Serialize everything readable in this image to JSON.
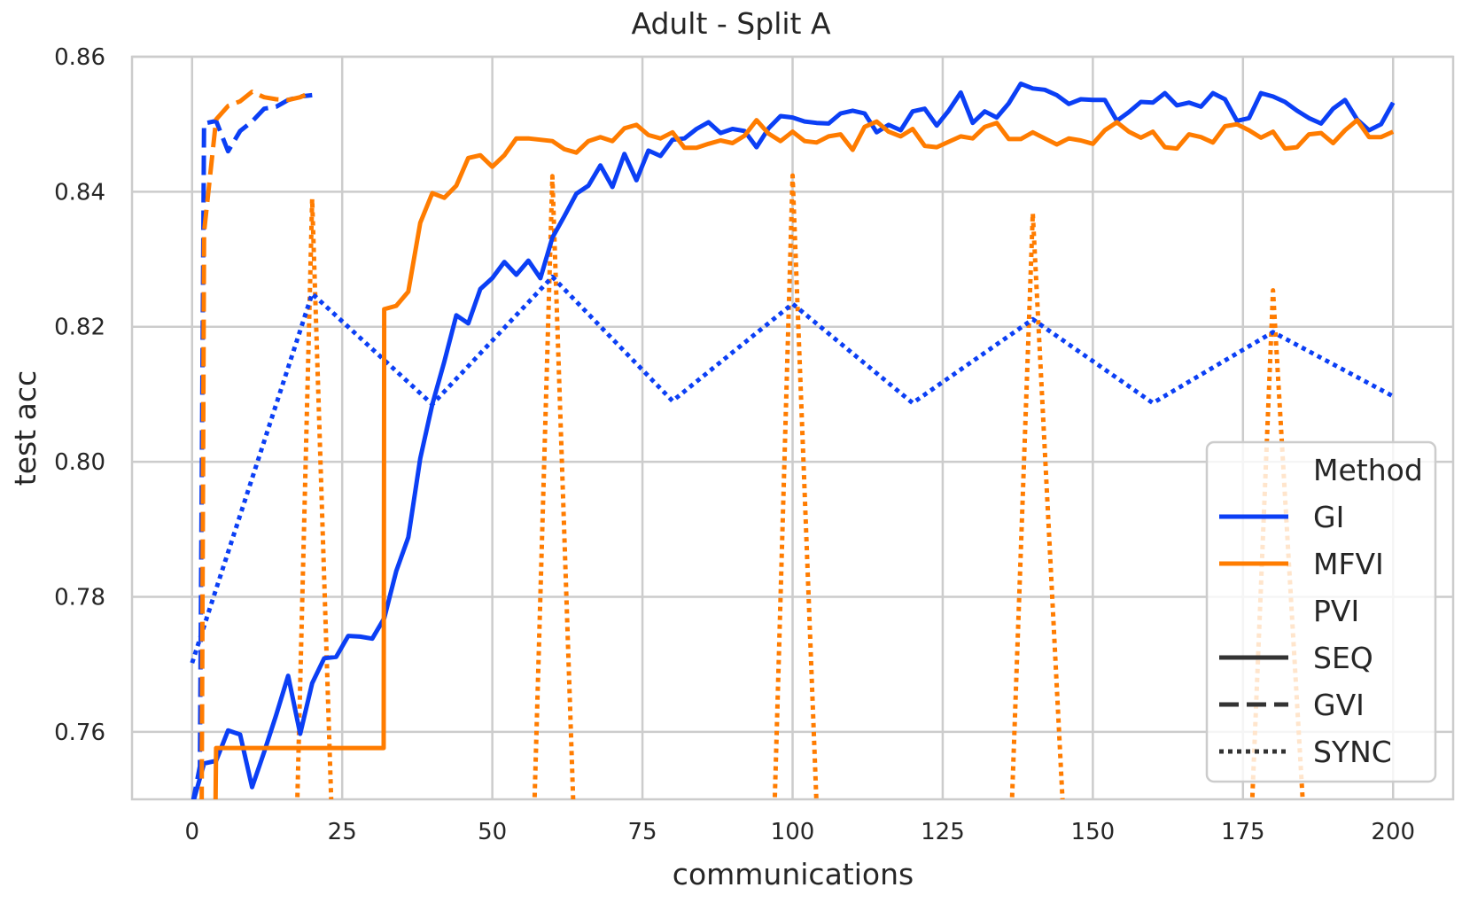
{
  "chart_data": {
    "type": "line",
    "title": "Adult - Split A",
    "xlabel": "communications",
    "ylabel": "test acc",
    "xlim": [
      -10,
      210
    ],
    "ylim": [
      0.75,
      0.86
    ],
    "xticks": [
      0,
      25,
      50,
      75,
      100,
      125,
      150,
      175,
      200
    ],
    "yticks": [
      0.76,
      0.78,
      0.8,
      0.82,
      0.84,
      0.86
    ],
    "xtick_labels": [
      "0",
      "25",
      "50",
      "75",
      "100",
      "125",
      "150",
      "175",
      "200"
    ],
    "ytick_labels": [
      "0.76",
      "0.78",
      "0.80",
      "0.82",
      "0.84",
      "0.86"
    ],
    "grid": true,
    "legend": {
      "placement": "lower-right",
      "title": "Method",
      "color_entries": [
        {
          "label": "GI",
          "color": "#0b3ff5"
        },
        {
          "label": "MFVI",
          "color": "#ff7c00"
        }
      ],
      "style_title": "PVI",
      "style_entries": [
        {
          "label": "SEQ",
          "dash": "solid"
        },
        {
          "label": "GVI",
          "dash": "dashed"
        },
        {
          "label": "SYNC",
          "dash": "dotted"
        }
      ]
    },
    "series": [
      {
        "method": "GI",
        "pvi": "SEQ",
        "color": "#0b3ff5",
        "dash": "solid",
        "x": [
          0,
          2,
          4,
          6,
          8,
          10,
          12,
          14,
          16,
          18,
          20,
          22,
          24,
          26,
          28,
          30,
          32,
          34,
          36,
          38,
          40,
          42,
          44,
          46,
          48,
          50,
          52,
          54,
          56,
          58,
          60,
          62,
          64,
          66,
          68,
          70,
          72,
          74,
          76,
          78,
          80,
          82,
          84,
          86,
          88,
          90,
          92,
          94,
          96,
          98,
          100,
          102,
          104,
          106,
          108,
          110,
          112,
          114,
          116,
          118,
          120,
          122,
          124,
          126,
          128,
          130,
          132,
          134,
          136,
          138,
          140,
          142,
          144,
          146,
          148,
          150,
          152,
          154,
          156,
          158,
          160,
          162,
          164,
          166,
          168,
          170,
          172,
          174,
          176,
          178,
          180,
          182,
          184,
          186,
          188,
          190,
          192,
          194,
          196,
          198,
          200
        ],
        "y": [
          0.749,
          0.7553,
          0.7557,
          0.7602,
          0.7596,
          0.7518,
          0.757,
          0.7625,
          0.7683,
          0.7597,
          0.7672,
          0.7709,
          0.7711,
          0.7742,
          0.7741,
          0.7738,
          0.7768,
          0.7838,
          0.7888,
          0.8005,
          0.8085,
          0.8148,
          0.8217,
          0.8205,
          0.8256,
          0.8272,
          0.8296,
          0.8277,
          0.8298,
          0.8272,
          0.8332,
          0.8364,
          0.8397,
          0.8409,
          0.8439,
          0.8407,
          0.8456,
          0.8417,
          0.8461,
          0.8453,
          0.8477,
          0.8479,
          0.8493,
          0.8503,
          0.8487,
          0.8493,
          0.849,
          0.8466,
          0.8494,
          0.8512,
          0.851,
          0.8504,
          0.8502,
          0.8501,
          0.8516,
          0.852,
          0.8516,
          0.8488,
          0.8499,
          0.8491,
          0.8519,
          0.8523,
          0.8498,
          0.852,
          0.8547,
          0.8502,
          0.8519,
          0.851,
          0.8531,
          0.856,
          0.8553,
          0.8551,
          0.8543,
          0.853,
          0.8537,
          0.8536,
          0.8536,
          0.8505,
          0.8518,
          0.8533,
          0.8532,
          0.8546,
          0.8528,
          0.8532,
          0.8526,
          0.8546,
          0.8537,
          0.8505,
          0.8509,
          0.8546,
          0.8541,
          0.8533,
          0.852,
          0.8509,
          0.8501,
          0.8523,
          0.8536,
          0.8507,
          0.8491,
          0.85,
          0.8532
        ]
      },
      {
        "method": "MFVI",
        "pvi": "SEQ",
        "color": "#ff7c00",
        "dash": "solid",
        "x": [
          3.9,
          4,
          30,
          31.9,
          32,
          34,
          36,
          38,
          40,
          42,
          44,
          46,
          48,
          50,
          52,
          54,
          56,
          58,
          60,
          62,
          64,
          66,
          68,
          70,
          72,
          74,
          76,
          78,
          80,
          82,
          84,
          86,
          88,
          90,
          92,
          94,
          96,
          98,
          100,
          102,
          104,
          106,
          108,
          110,
          112,
          114,
          116,
          118,
          120,
          122,
          124,
          126,
          128,
          130,
          132,
          134,
          136,
          138,
          140,
          142,
          144,
          146,
          148,
          150,
          152,
          154,
          156,
          158,
          160,
          162,
          164,
          166,
          168,
          170,
          172,
          174,
          176,
          178,
          180,
          182,
          184,
          186,
          188,
          190,
          192,
          194,
          196,
          198,
          200
        ],
        "y": [
          0.749,
          0.7576,
          0.7576,
          0.7576,
          0.8226,
          0.8231,
          0.8252,
          0.8354,
          0.8398,
          0.8391,
          0.8409,
          0.845,
          0.8454,
          0.8437,
          0.8454,
          0.8479,
          0.8479,
          0.8477,
          0.8475,
          0.8463,
          0.8458,
          0.8475,
          0.8481,
          0.8475,
          0.8494,
          0.8499,
          0.8484,
          0.8479,
          0.8488,
          0.8465,
          0.8465,
          0.8471,
          0.8476,
          0.8472,
          0.8483,
          0.8506,
          0.8486,
          0.8475,
          0.8489,
          0.8475,
          0.8473,
          0.8482,
          0.8485,
          0.8462,
          0.8496,
          0.8504,
          0.8489,
          0.8482,
          0.8493,
          0.8468,
          0.8466,
          0.8474,
          0.8482,
          0.8479,
          0.8496,
          0.8502,
          0.8478,
          0.8478,
          0.8488,
          0.8479,
          0.847,
          0.8479,
          0.8476,
          0.8471,
          0.8491,
          0.8503,
          0.8489,
          0.848,
          0.8489,
          0.8466,
          0.8464,
          0.8485,
          0.8481,
          0.8473,
          0.8497,
          0.85,
          0.8491,
          0.848,
          0.8489,
          0.8464,
          0.8466,
          0.8485,
          0.8487,
          0.8472,
          0.8491,
          0.8506,
          0.8481,
          0.8481,
          0.8489
        ]
      },
      {
        "method": "GI",
        "pvi": "GVI",
        "color": "#0b3ff5",
        "dash": "dashed",
        "x": [
          0,
          1.3,
          2,
          4,
          6,
          8,
          10,
          12,
          14,
          16,
          18,
          20
        ],
        "y": [
          0.749,
          0.7549,
          0.8501,
          0.8505,
          0.846,
          0.849,
          0.8504,
          0.8523,
          0.8526,
          0.8536,
          0.8541,
          0.8543
        ]
      },
      {
        "method": "MFVI",
        "pvi": "GVI",
        "color": "#ff7c00",
        "dash": "dashed",
        "x": [
          1.6,
          2,
          4,
          6,
          8,
          10,
          12,
          14,
          16,
          18,
          20
        ],
        "y": [
          0.749,
          0.834,
          0.8507,
          0.8527,
          0.8534,
          0.8548,
          0.854,
          0.8537,
          0.8536,
          0.854,
          0.8548
        ]
      },
      {
        "method": "GI",
        "pvi": "SYNC",
        "color": "#0b3ff5",
        "dash": "dotted",
        "x": [
          0,
          20,
          40,
          60,
          80,
          100,
          120,
          140,
          160,
          180,
          200
        ],
        "y": [
          0.7702,
          0.8249,
          0.8085,
          0.8274,
          0.809,
          0.8234,
          0.8087,
          0.8211,
          0.8087,
          0.8192,
          0.8097
        ]
      },
      {
        "method": "MFVI",
        "pvi": "SYNC",
        "color": "#ff7c00",
        "dash": "dotted",
        "x": [
          17.5,
          20,
          23.2,
          57,
          60,
          63.5,
          97,
          100,
          104,
          136.5,
          140,
          145,
          176.5,
          180,
          185
        ],
        "y": [
          0.749,
          0.8389,
          0.749,
          0.749,
          0.8423,
          0.749,
          0.749,
          0.8424,
          0.749,
          0.749,
          0.8368,
          0.749,
          0.749,
          0.8254,
          0.749
        ],
        "breaks_after_index": [
          2,
          5,
          8,
          11
        ]
      }
    ]
  }
}
